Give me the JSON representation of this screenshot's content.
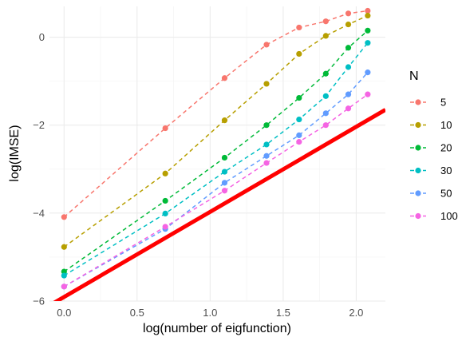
{
  "chart_data": {
    "type": "line",
    "xlabel": "log(number of eigfunction)",
    "ylabel": "log(IMSE)",
    "xlim": [
      -0.1,
      2.2
    ],
    "ylim": [
      -6.0,
      0.7
    ],
    "x_ticks": [
      "0.0",
      "0.5",
      "1.0",
      "1.5",
      "2.0"
    ],
    "y_ticks": [
      "-6",
      "-4",
      "-2",
      "0"
    ],
    "grid": true,
    "legend": {
      "title": "N",
      "placement": "right"
    },
    "x": [
      0.0,
      0.693,
      1.099,
      1.386,
      1.609,
      1.792,
      1.946,
      2.079
    ],
    "series": [
      {
        "name": "5",
        "color": "#F8766D",
        "values": [
          -4.09,
          -2.07,
          -0.93,
          -0.17,
          0.22,
          0.36,
          0.54,
          0.6
        ]
      },
      {
        "name": "10",
        "color": "#B79F00",
        "values": [
          -4.77,
          -3.1,
          -1.89,
          -1.06,
          -0.38,
          0.03,
          0.29,
          0.49
        ]
      },
      {
        "name": "20",
        "color": "#00BA38",
        "values": [
          -5.33,
          -3.72,
          -2.74,
          -2.0,
          -1.38,
          -0.83,
          -0.24,
          0.15
        ]
      },
      {
        "name": "30",
        "color": "#00BFC4",
        "values": [
          -5.42,
          -4.01,
          -3.06,
          -2.44,
          -1.87,
          -1.34,
          -0.68,
          -0.13
        ]
      },
      {
        "name": "50",
        "color": "#619CFF",
        "values": [
          -5.67,
          -4.36,
          -3.31,
          -2.7,
          -2.23,
          -1.73,
          -1.3,
          -0.8
        ]
      },
      {
        "name": "100",
        "color": "#F564E3",
        "values": [
          -5.67,
          -4.31,
          -3.49,
          -2.86,
          -2.38,
          -2.0,
          -1.62,
          -1.3
        ]
      }
    ],
    "reference_line": {
      "color": "#FF0000",
      "x": [
        -0.1,
        2.2
      ],
      "y": [
        -6.1,
        -1.65
      ]
    }
  }
}
